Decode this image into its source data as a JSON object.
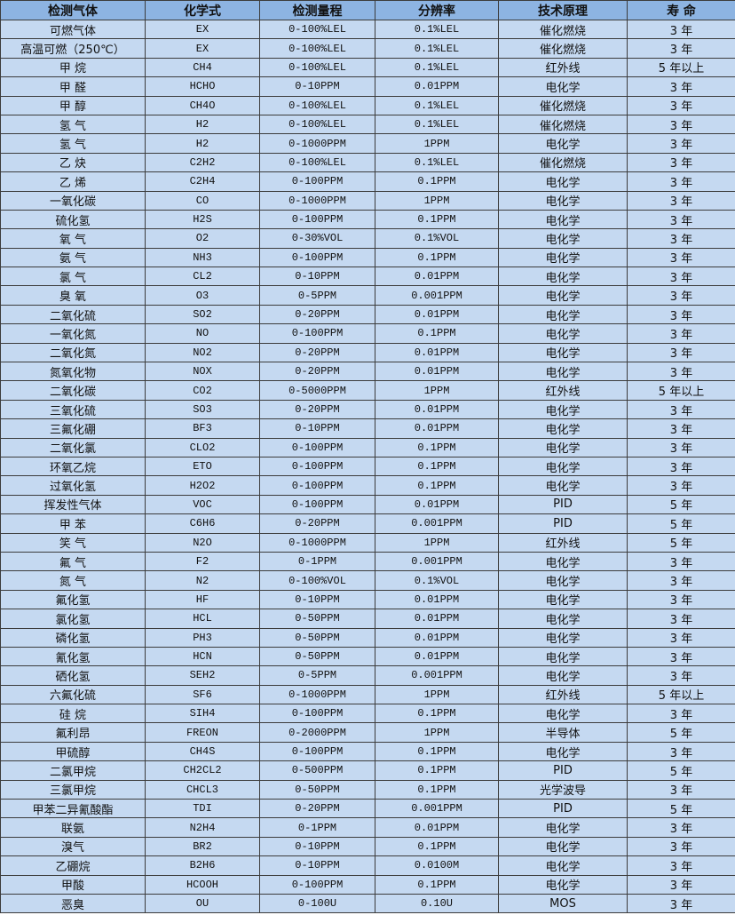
{
  "table": {
    "headers": [
      "检测气体",
      "化学式",
      "检测量程",
      "分辨率",
      "技术原理",
      "寿 命"
    ],
    "rows": [
      [
        "可燃气体",
        "EX",
        "0-100%LEL",
        "0.1%LEL",
        "催化燃烧",
        "3 年"
      ],
      [
        "高温可燃（250℃）",
        "EX",
        "0-100%LEL",
        "0.1%LEL",
        "催化燃烧",
        "3 年"
      ],
      [
        "甲 烷",
        "CH4",
        "0-100%LEL",
        "0.1%LEL",
        "红外线",
        "5 年以上"
      ],
      [
        "甲 醛",
        "HCHO",
        "0-10PPM",
        "0.01PPM",
        "电化学",
        "3 年"
      ],
      [
        "甲 醇",
        "CH4O",
        "0-100%LEL",
        "0.1%LEL",
        "催化燃烧",
        "3 年"
      ],
      [
        "氢 气",
        "H2",
        "0-100%LEL",
        "0.1%LEL",
        "催化燃烧",
        "3 年"
      ],
      [
        "氢 气",
        "H2",
        "0-1000PPM",
        "1PPM",
        "电化学",
        "3 年"
      ],
      [
        "乙 炔",
        "C2H2",
        "0-100%LEL",
        "0.1%LEL",
        "催化燃烧",
        "3 年"
      ],
      [
        "乙 烯",
        "C2H4",
        "0-100PPM",
        "0.1PPM",
        "电化学",
        "3 年"
      ],
      [
        "一氧化碳",
        "CO",
        "0-1000PPM",
        "1PPM",
        "电化学",
        "3 年"
      ],
      [
        "硫化氢",
        "H2S",
        "0-100PPM",
        "0.1PPM",
        "电化学",
        "3 年"
      ],
      [
        "氧 气",
        "O2",
        "0-30%VOL",
        "0.1%VOL",
        "电化学",
        "3 年"
      ],
      [
        "氨 气",
        "NH3",
        "0-100PPM",
        "0.1PPM",
        "电化学",
        "3 年"
      ],
      [
        "氯 气",
        "CL2",
        "0-10PPM",
        "0.01PPM",
        "电化学",
        "3 年"
      ],
      [
        "臭 氧",
        "O3",
        "0-5PPM",
        "0.001PPM",
        "电化学",
        "3 年"
      ],
      [
        "二氧化硫",
        "SO2",
        "0-20PPM",
        "0.01PPM",
        "电化学",
        "3 年"
      ],
      [
        "一氧化氮",
        "NO",
        "0-100PPM",
        "0.1PPM",
        "电化学",
        "3 年"
      ],
      [
        "二氧化氮",
        "NO2",
        "0-20PPM",
        "0.01PPM",
        "电化学",
        "3 年"
      ],
      [
        "氮氧化物",
        "NOX",
        "0-20PPM",
        "0.01PPM",
        "电化学",
        "3 年"
      ],
      [
        "二氧化碳",
        "CO2",
        "0-5000PPM",
        "1PPM",
        "红外线",
        "5 年以上"
      ],
      [
        "三氧化硫",
        "SO3",
        "0-20PPM",
        "0.01PPM",
        "电化学",
        "3 年"
      ],
      [
        "三氟化硼",
        "BF3",
        "0-10PPM",
        "0.01PPM",
        "电化学",
        "3 年"
      ],
      [
        "二氧化氯",
        "CLO2",
        "0-100PPM",
        "0.1PPM",
        "电化学",
        "3 年"
      ],
      [
        "环氧乙烷",
        "ETO",
        "0-100PPM",
        "0.1PPM",
        "电化学",
        "3 年"
      ],
      [
        "过氧化氢",
        "H2O2",
        "0-100PPM",
        "0.1PPM",
        "电化学",
        "3 年"
      ],
      [
        "挥发性气体",
        "VOC",
        "0-100PPM",
        "0.01PPM",
        "PID",
        "5 年"
      ],
      [
        "甲 苯",
        "C6H6",
        "0-20PPM",
        "0.001PPM",
        "PID",
        "5 年"
      ],
      [
        "笑 气",
        "N2O",
        "0-1000PPM",
        "1PPM",
        "红外线",
        "5 年"
      ],
      [
        "氟 气",
        "F2",
        "0-1PPM",
        "0.001PPM",
        "电化学",
        "3 年"
      ],
      [
        "氮 气",
        "N2",
        "0-100%VOL",
        "0.1%VOL",
        "电化学",
        "3 年"
      ],
      [
        "氟化氢",
        "HF",
        "0-10PPM",
        "0.01PPM",
        "电化学",
        "3 年"
      ],
      [
        "氯化氢",
        "HCL",
        "0-50PPM",
        "0.01PPM",
        "电化学",
        "3 年"
      ],
      [
        "磷化氢",
        "PH3",
        "0-50PPM",
        "0.01PPM",
        "电化学",
        "3 年"
      ],
      [
        "氰化氢",
        "HCN",
        "0-50PPM",
        "0.01PPM",
        "电化学",
        "3 年"
      ],
      [
        "硒化氢",
        "SEH2",
        "0-5PPM",
        "0.001PPM",
        "电化学",
        "3 年"
      ],
      [
        "六氟化硫",
        "SF6",
        "0-1000PPM",
        "1PPM",
        "红外线",
        "5 年以上"
      ],
      [
        "硅 烷",
        "SIH4",
        "0-100PPM",
        "0.1PPM",
        "电化学",
        "3 年"
      ],
      [
        "氟利昂",
        "FREON",
        "0-2000PPM",
        "1PPM",
        "半导体",
        "5 年"
      ],
      [
        "甲硫醇",
        "CH4S",
        "0-100PPM",
        "0.1PPM",
        "电化学",
        "3 年"
      ],
      [
        "二氯甲烷",
        "CH2CL2",
        "0-500PPM",
        "0.1PPM",
        "PID",
        "5 年"
      ],
      [
        "三氯甲烷",
        "CHCL3",
        "0-50PPM",
        "0.1PPM",
        "光学波导",
        "3 年"
      ],
      [
        "甲苯二异氰酸酯",
        "TDI",
        "0-20PPM",
        "0.001PPM",
        "PID",
        "5 年"
      ],
      [
        "联氨",
        "N2H4",
        "0-1PPM",
        "0.01PPM",
        "电化学",
        "3 年"
      ],
      [
        "溴气",
        "BR2",
        "0-10PPM",
        "0.1PPM",
        "电化学",
        "3 年"
      ],
      [
        "乙硼烷",
        "B2H6",
        "0-10PPM",
        "0.0100M",
        "电化学",
        "3 年"
      ],
      [
        "甲酸",
        "HCOOH",
        "0-100PPM",
        "0.1PPM",
        "电化学",
        "3 年"
      ],
      [
        "恶臭",
        "OU",
        "0-100U",
        "0.10U",
        "MOS",
        "3 年"
      ]
    ]
  },
  "colors": {
    "header_bg": "#8db4e2",
    "row_bg": "#c5d9f1",
    "border": "#3c3c3c"
  }
}
